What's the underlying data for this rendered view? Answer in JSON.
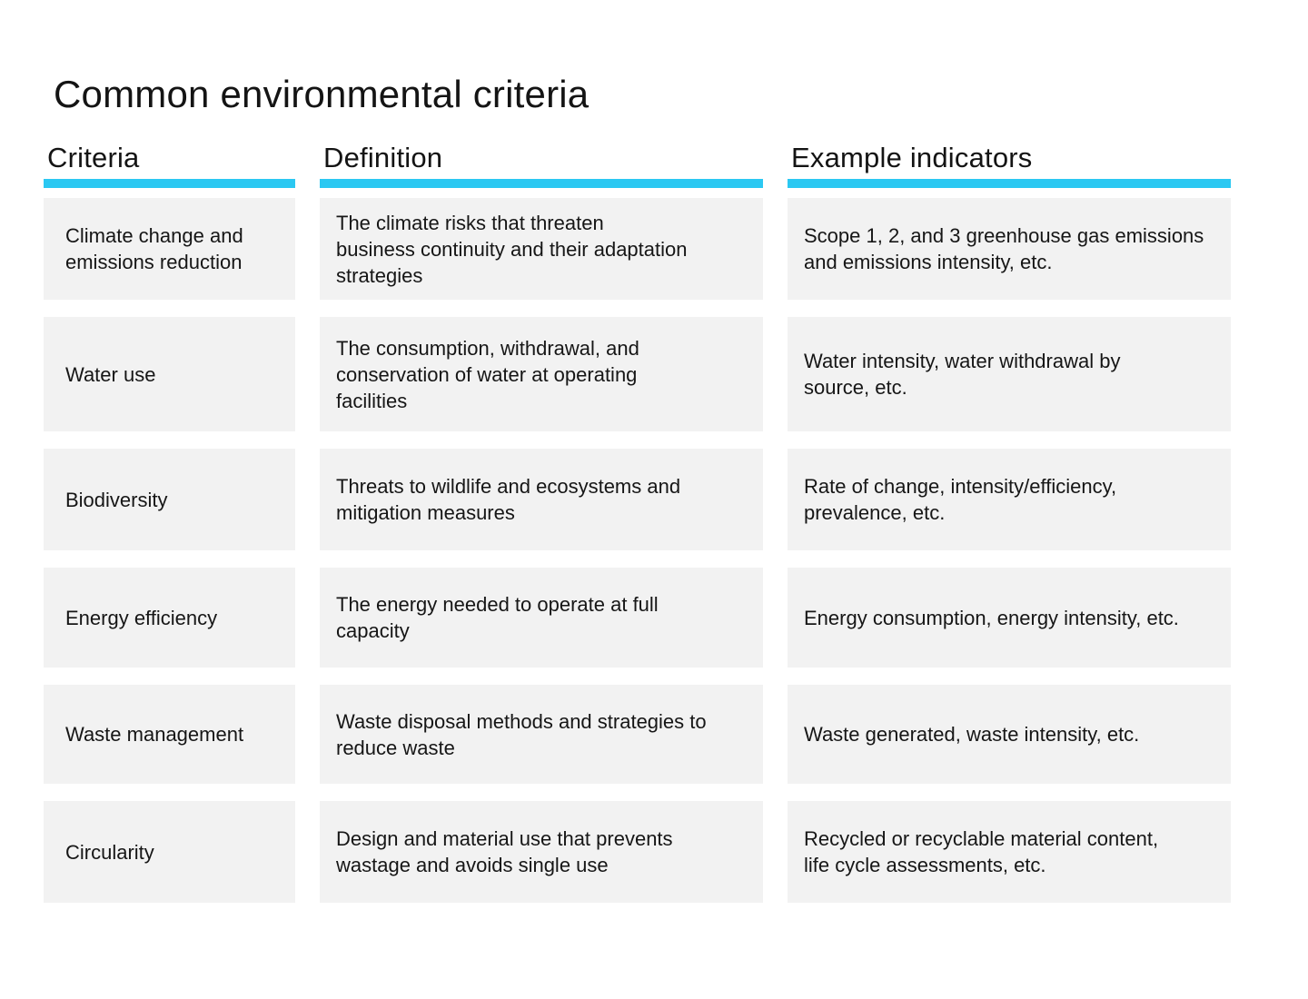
{
  "colors": {
    "accent_cyan": "#2BC8F2",
    "cell_background": "#F2F2F2",
    "text": "#141414"
  },
  "title": "Common environmental criteria",
  "table": {
    "headers": [
      "Criteria",
      "Definition",
      "Example indicators"
    ],
    "rows": [
      {
        "criteria": "Climate change and\nemissions reduction",
        "definition": "The climate risks that threaten\nbusiness continuity and their adaptation\nstrategies",
        "indicators": "Scope 1, 2, and 3 greenhouse gas emissions\nand emissions intensity, etc."
      },
      {
        "criteria": "Water use",
        "definition": "The consumption, withdrawal, and\nconservation of water at operating\nfacilities",
        "indicators": "Water intensity, water withdrawal by\nsource, etc."
      },
      {
        "criteria": "Biodiversity",
        "definition": "Threats to wildlife and ecosystems and\nmitigation measures",
        "indicators": "Rate of change, intensity/efficiency,\nprevalence, etc."
      },
      {
        "criteria": "Energy efficiency",
        "definition": "The energy needed to operate at full\ncapacity",
        "indicators": "Energy consumption, energy intensity, etc."
      },
      {
        "criteria": "Waste management",
        "definition": "Waste disposal methods and strategies to\nreduce waste",
        "indicators": "Waste generated, waste intensity, etc."
      },
      {
        "criteria": "Circularity",
        "definition": "Design and material use that prevents\nwastage and avoids single use",
        "indicators": "Recycled or recyclable material content,\nlife cycle assessments, etc."
      }
    ]
  }
}
